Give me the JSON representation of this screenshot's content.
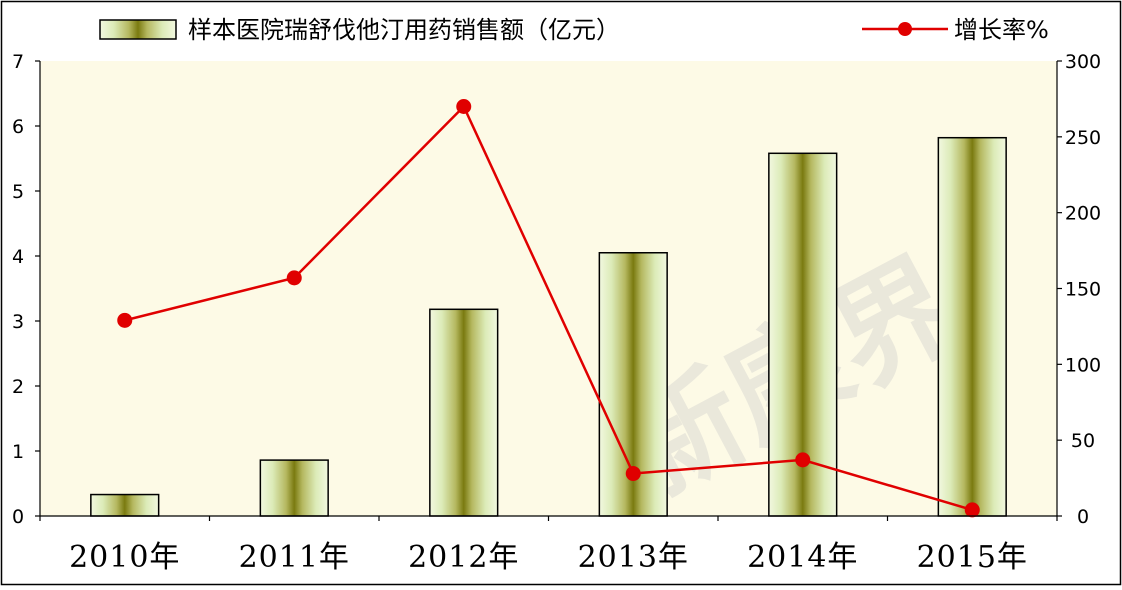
{
  "chart_data": {
    "type": "bar+line",
    "categories": [
      "2010年",
      "2011年",
      "2012年",
      "2013年",
      "2014年",
      "2015年"
    ],
    "series": [
      {
        "name": "样本医院瑞舒伐他汀用药销售额（亿元）",
        "type": "bar",
        "axis": "left",
        "values": [
          0.33,
          0.86,
          3.18,
          4.05,
          5.58,
          5.82
        ]
      },
      {
        "name": "增长率%",
        "type": "line",
        "axis": "right",
        "values": [
          129,
          157,
          270,
          28,
          37,
          4
        ]
      }
    ],
    "y_left": {
      "min": 0,
      "max": 7,
      "ticks": [
        0,
        1,
        2,
        3,
        4,
        5,
        6,
        7
      ]
    },
    "y_right": {
      "min": 0,
      "max": 300,
      "ticks": [
        0,
        50,
        100,
        150,
        200,
        250,
        300
      ]
    },
    "legend_position": "top",
    "grid": false,
    "colors": {
      "plot_background": "#fdfae6",
      "bar_edge": "#808000",
      "bar_center": "#7a7a10",
      "bar_light": "#eef8d8",
      "line": "#e00000",
      "marker": "#e00000"
    },
    "watermark": "新康界"
  }
}
